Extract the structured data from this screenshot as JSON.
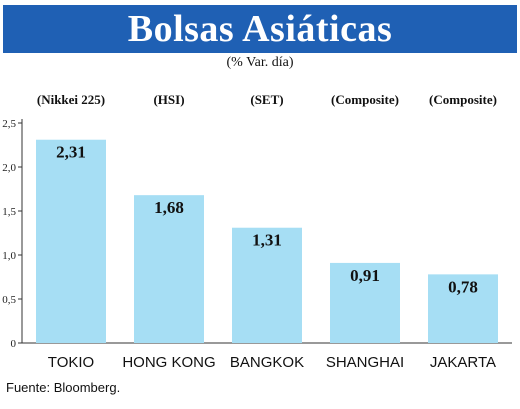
{
  "header": {
    "title": "Bolsas Asiáticas",
    "subtitle": "(% Var. día)"
  },
  "source": "Fuente: Bloomberg.",
  "colors": {
    "title_band": "#1f60b4",
    "bar": "#a6def4",
    "axis": "#333333"
  },
  "chart_data": {
    "type": "bar",
    "title": "Bolsas Asiáticas",
    "subtitle": "(% Var. día)",
    "categories": [
      "TOKIO",
      "HONG KONG",
      "BANGKOK",
      "SHANGHAI",
      "JAKARTA"
    ],
    "index_labels": [
      "(Nikkei 225)",
      "(HSI)",
      "(SET)",
      "(Composite)",
      "(Composite)"
    ],
    "values": [
      2.31,
      1.68,
      1.31,
      0.91,
      0.78
    ],
    "value_labels": [
      "2,31",
      "1,68",
      "1,31",
      "0,91",
      "0,78"
    ],
    "ylim": [
      0,
      2.5
    ],
    "yticks": [
      0,
      0.5,
      1.0,
      1.5,
      2.0,
      2.5
    ],
    "ytick_labels": [
      "0",
      "0,5",
      "1,0",
      "1,5",
      "2,0",
      "2,5"
    ],
    "xlabel": "",
    "ylabel": "",
    "grid": false,
    "legend": "none"
  }
}
